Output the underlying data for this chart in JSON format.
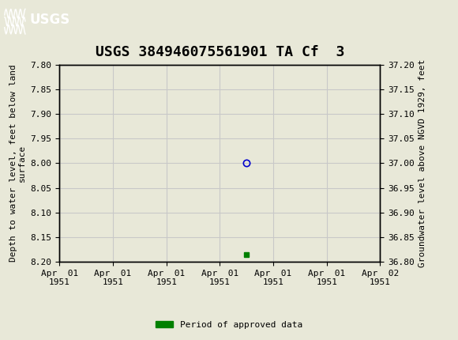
{
  "title": "USGS 384946075561901 TA Cf  3",
  "ylabel_left": "Depth to water level, feet below land\nsurface",
  "ylabel_right": "Groundwater level above NGVD 1929, feet",
  "ylim_left": [
    7.8,
    8.2
  ],
  "ylim_right": [
    36.8,
    37.2
  ],
  "yticks_left": [
    7.8,
    7.85,
    7.9,
    7.95,
    8.0,
    8.05,
    8.1,
    8.15,
    8.2
  ],
  "yticks_right": [
    36.8,
    36.85,
    36.9,
    36.95,
    37.0,
    37.05,
    37.1,
    37.15,
    37.2
  ],
  "data_point_x": 3.5,
  "data_point_y": 8.0,
  "marker_facecolor": "none",
  "marker_edgecolor": "#0000cc",
  "approved_bar_x": 3.5,
  "approved_bar_y": 8.185,
  "approved_bar_color": "#008000",
  "grid_color": "#c8c8c8",
  "background_color": "#e8e8d8",
  "plot_bg_color": "#e8e8d8",
  "header_color": "#1a6b3c",
  "legend_label": "Period of approved data",
  "legend_color": "#008000",
  "xlim": [
    0,
    6
  ],
  "xtick_positions": [
    0,
    1,
    2,
    3,
    4,
    5,
    6
  ],
  "xtick_labels": [
    "Apr  01\n1951",
    "Apr  01\n1951",
    "Apr  01\n1951",
    "Apr  01\n1951",
    "Apr  01\n1951",
    "Apr  01\n1951",
    "Apr  02\n1951"
  ],
  "title_fontsize": 13,
  "axis_label_fontsize": 8,
  "tick_fontsize": 8
}
